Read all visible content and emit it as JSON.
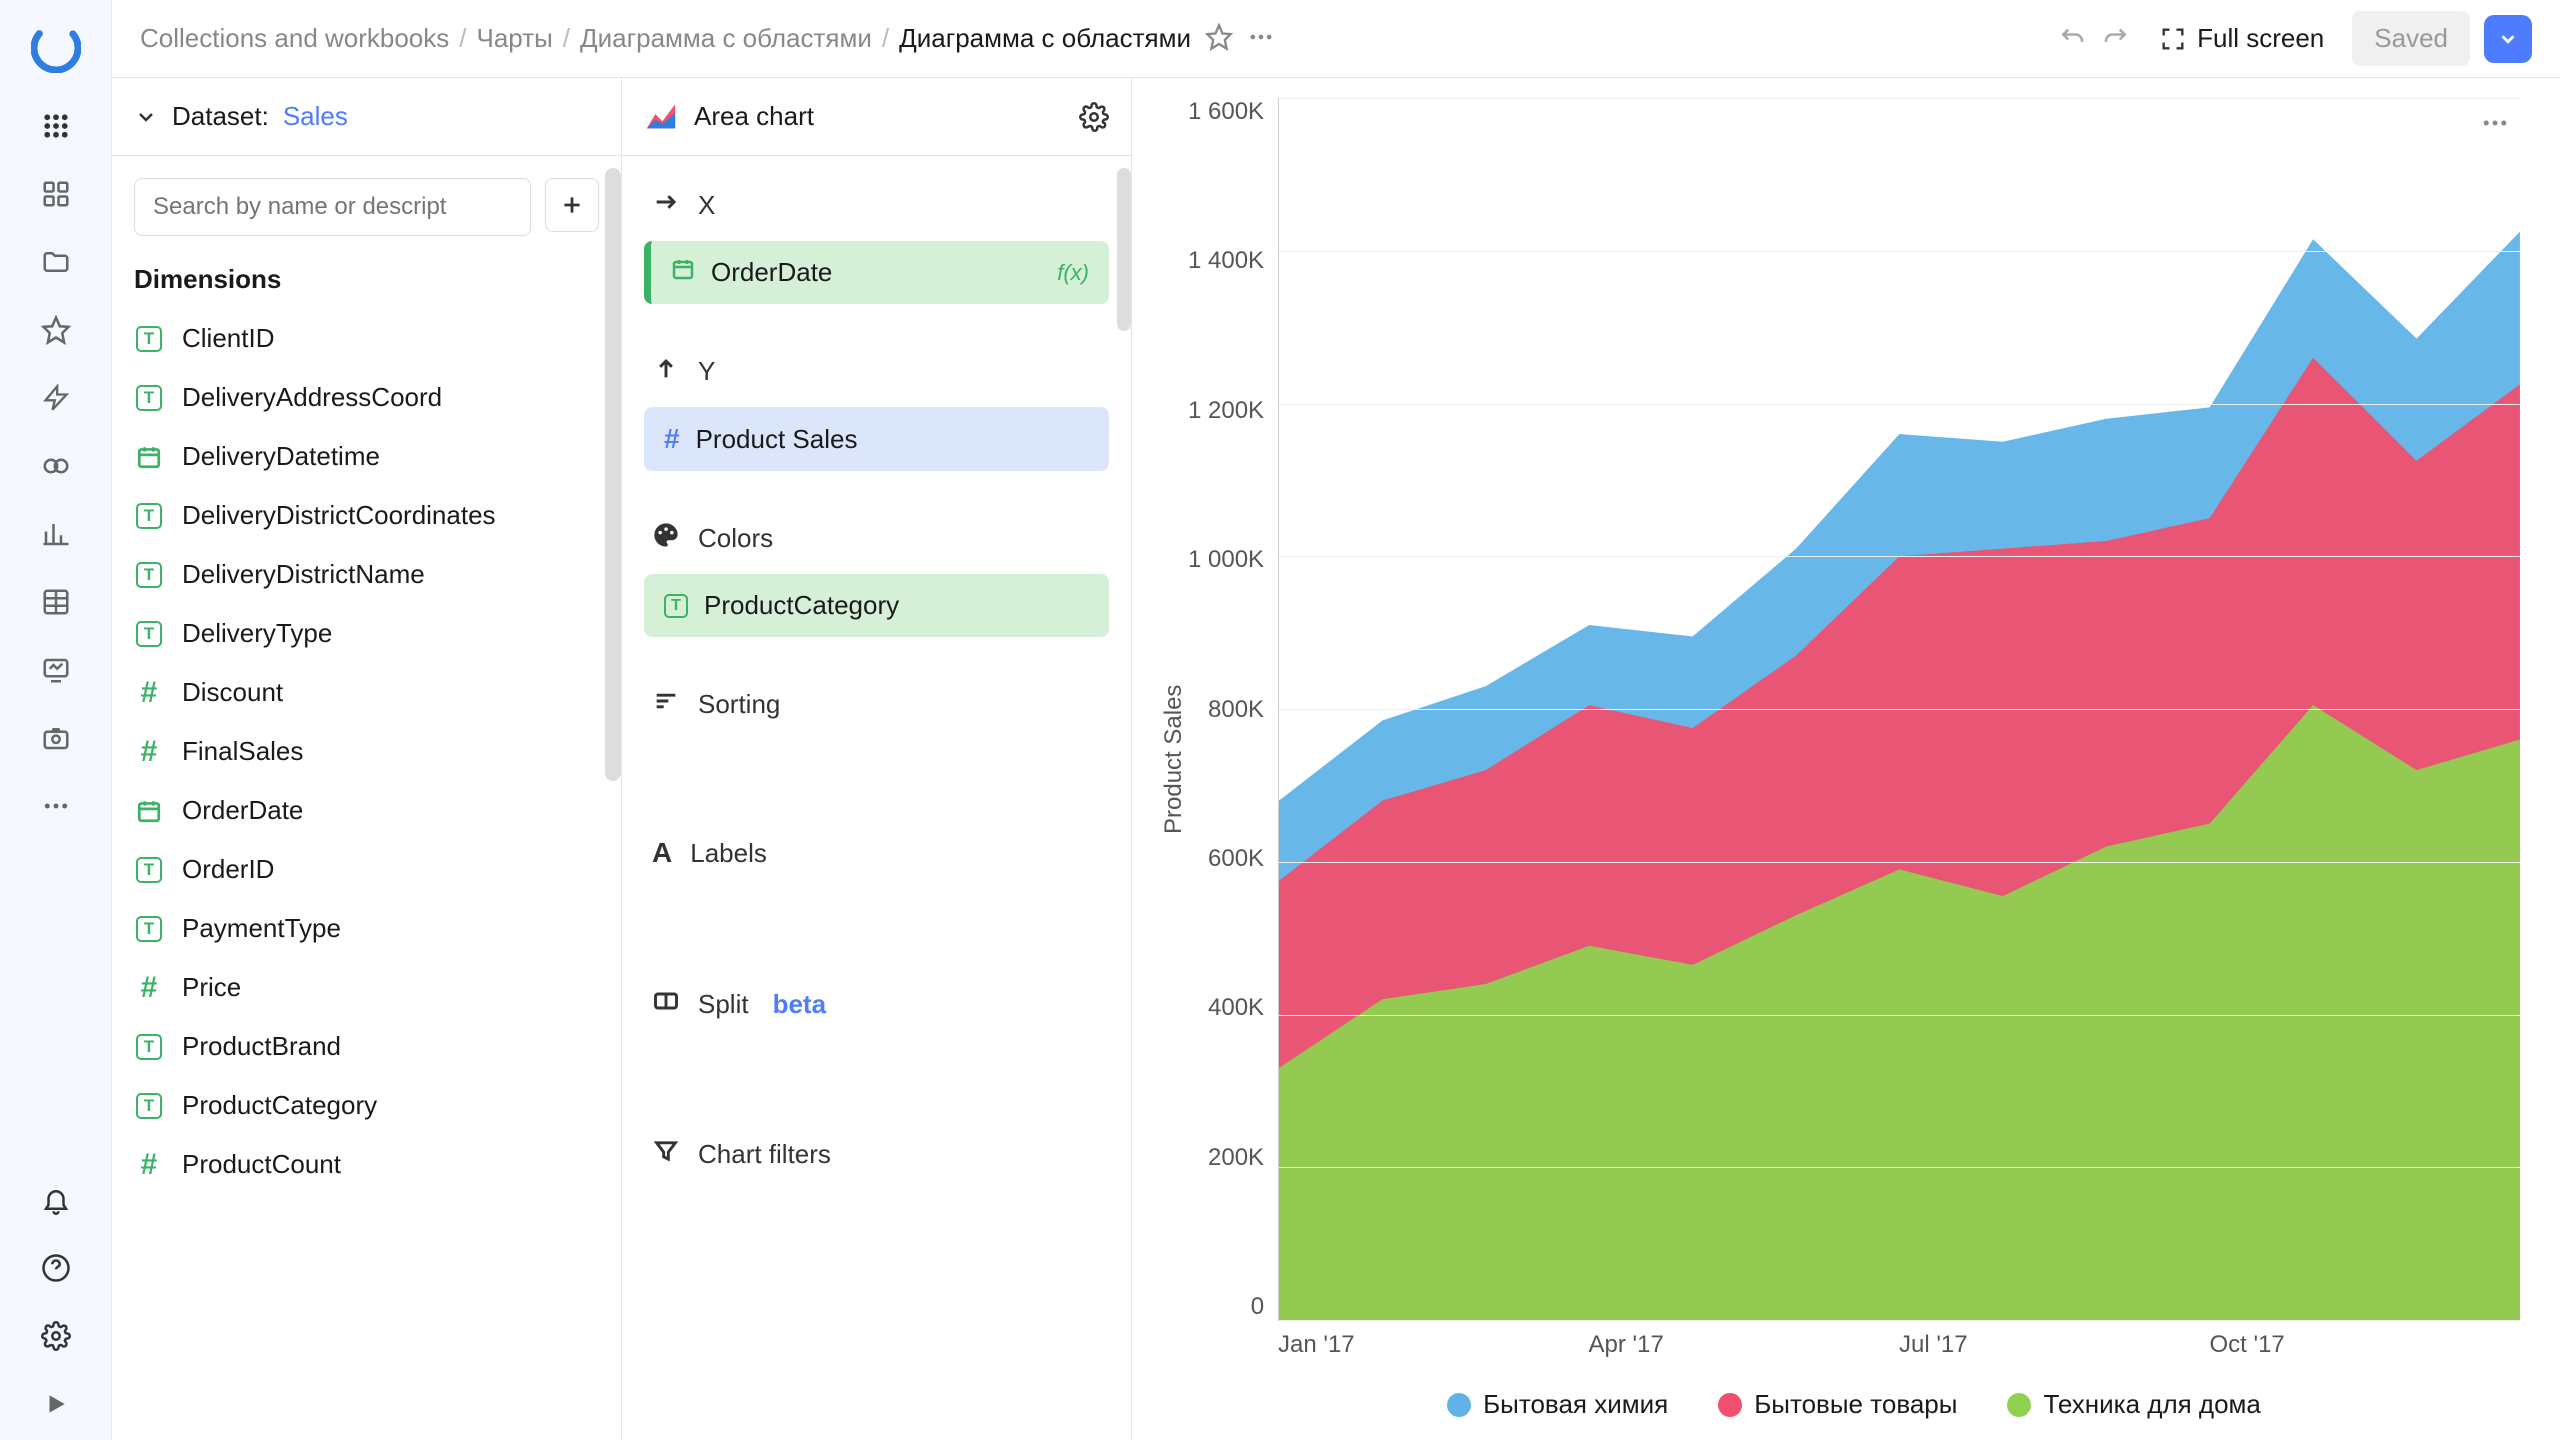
{
  "breadcrumb": [
    "Collections and workbooks",
    "Чарты",
    "Диаграмма с областями"
  ],
  "breadcrumb_current": "Диаграмма с областями",
  "topbar": {
    "fullscreen": "Full screen",
    "saved": "Saved"
  },
  "dataset": {
    "label": "Dataset:",
    "name": "Sales",
    "search_placeholder": "Search by name or descript",
    "dimensions_title": "Dimensions",
    "fields": [
      {
        "icon": "t",
        "label": "ClientID"
      },
      {
        "icon": "t",
        "label": "DeliveryAddressCoord"
      },
      {
        "icon": "cal",
        "label": "DeliveryDatetime"
      },
      {
        "icon": "t",
        "label": "DeliveryDistrictCoordinates"
      },
      {
        "icon": "t",
        "label": "DeliveryDistrictName"
      },
      {
        "icon": "t",
        "label": "DeliveryType"
      },
      {
        "icon": "hash",
        "label": "Discount"
      },
      {
        "icon": "hash",
        "label": "FinalSales"
      },
      {
        "icon": "cal",
        "label": "OrderDate"
      },
      {
        "icon": "t",
        "label": "OrderID"
      },
      {
        "icon": "t",
        "label": "PaymentType"
      },
      {
        "icon": "hash",
        "label": "Price"
      },
      {
        "icon": "t",
        "label": "ProductBrand"
      },
      {
        "icon": "t",
        "label": "ProductCategory"
      },
      {
        "icon": "hash",
        "label": "ProductCount"
      }
    ]
  },
  "config": {
    "chart_type": "Area chart",
    "sections": {
      "x": {
        "title": "X",
        "chip": {
          "icon": "cal",
          "label": "OrderDate",
          "fx": "f(x)",
          "style": "green-bar"
        }
      },
      "y": {
        "title": "Y",
        "chip": {
          "icon": "hash",
          "label": "Product Sales",
          "style": "blue"
        }
      },
      "colors": {
        "title": "Colors",
        "chip": {
          "icon": "t",
          "label": "ProductCategory",
          "style": "green"
        }
      },
      "sorting": {
        "title": "Sorting"
      },
      "labels": {
        "title": "Labels"
      },
      "split": {
        "title": "Split",
        "badge": "beta"
      },
      "filters": {
        "title": "Chart filters"
      }
    }
  },
  "chart": {
    "type": "area",
    "y_label": "Product Sales",
    "ylim": [
      0,
      1600000
    ],
    "y_ticks": [
      "1 600K",
      "1 400K",
      "1 200K",
      "1 000K",
      "800K",
      "600K",
      "400K",
      "200K",
      "0"
    ],
    "x_ticks": [
      "Jan '17",
      "Apr '17",
      "Jul '17",
      "Oct '17"
    ],
    "colors": {
      "series1": "#5fb3e8",
      "series2": "#f04f6e",
      "series3": "#8fd14f",
      "grid": "#eeeeee",
      "axis": "#cccccc",
      "background": "#ffffff"
    },
    "legend": [
      {
        "color": "#5fb3e8",
        "label": "Бытовая химия"
      },
      {
        "color": "#f04f6e",
        "label": "Бытовые товары"
      },
      {
        "color": "#8fd14f",
        "label": "Техника для дома"
      }
    ],
    "x_count": 12,
    "series_green": [
      330000,
      420000,
      440000,
      490000,
      465000,
      530000,
      590000,
      555000,
      620000,
      650000,
      805000,
      720000,
      760000
    ],
    "series_pink": [
      575000,
      680000,
      720000,
      805000,
      775000,
      870000,
      1000000,
      1010000,
      1020000,
      1050000,
      1260000,
      1125000,
      1225000
    ],
    "series_blue": [
      680000,
      785000,
      830000,
      910000,
      895000,
      1010000,
      1160000,
      1150000,
      1180000,
      1195000,
      1415000,
      1285000,
      1425000
    ]
  }
}
